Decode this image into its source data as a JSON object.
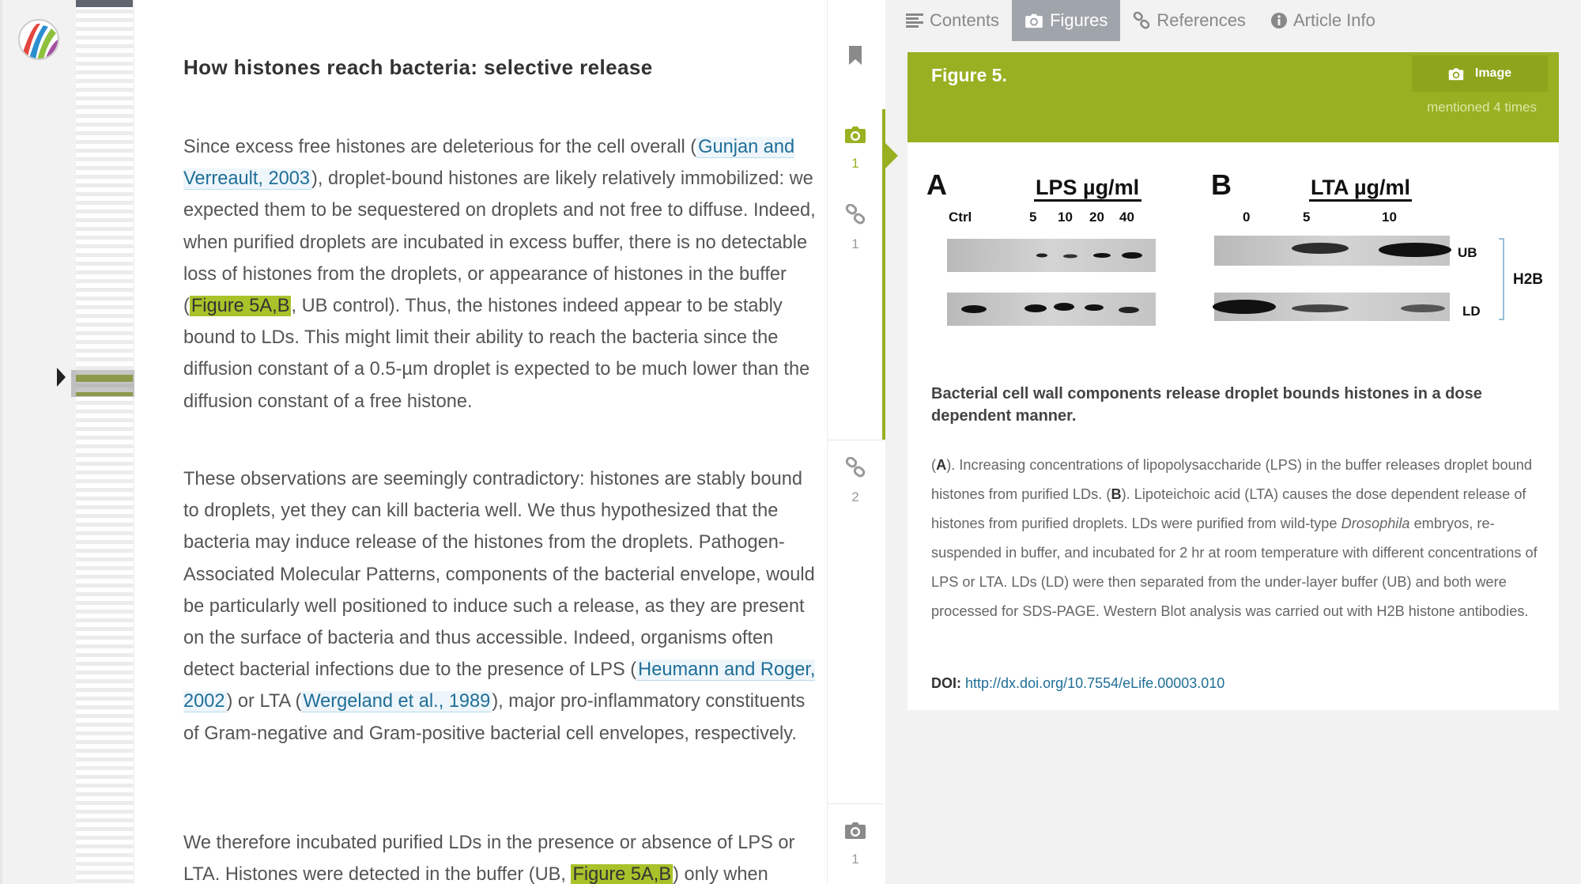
{
  "colors": {
    "accent": "#98b022",
    "link": "#1f6e97",
    "tab_active_bg": "#a0a5ab"
  },
  "article": {
    "heading": "How histones reach bacteria: selective release",
    "p1": {
      "t1": "Since excess free histones are deleterious for the cell overall (",
      "c1": "Gunjan and Verreault, 2003",
      "t2": "), droplet-bound histones are likely relatively immobilized: we expected them to be sequestered on droplets and not free to diffuse. Indeed, when purified droplets are incubated in excess buffer, there is no detectable loss of histones from the droplets, or appearance of histones in the buffer (",
      "f1": "Figure 5A,B",
      "t3": ", UB control). Thus, the histones indeed appear to be stably bound to LDs. This might limit their ability to reach the bacteria since the diffusion constant of a 0.5-µm droplet is expected to be much lower than the diffusion constant of a free histone."
    },
    "p2": {
      "t1": "These observations are seemingly contradictory: histones are stably bound to droplets, yet they can kill bacteria well. We thus hypothesized that the bacteria may induce release of the histones from the droplets. Pathogen-Associated Molecular Patterns, components of the bacterial envelope, would be particularly well positioned to induce such a release, as they are present on the surface of bacteria and thus accessible. Indeed, organisms often detect bacterial infections due to the presence of LPS (",
      "c1": "Heumann and Roger, 2002",
      "t2": ") or LTA (",
      "c2": "Wergeland et al., 1989",
      "t3": "), major pro-inflammatory constituents of Gram-negative and Gram-positive bacterial cell envelopes, respectively."
    },
    "p3": {
      "t1": "We therefore incubated purified LDs in the presence or absence of LPS or LTA. Histones were detected in the buffer (UB, ",
      "f1": "Figure 5A,B",
      "t2": ") only when"
    }
  },
  "gutter": {
    "items": [
      {
        "icon": "camera-icon",
        "count": "1"
      },
      {
        "icon": "link-icon",
        "count": "1"
      },
      {
        "icon": "link-icon",
        "count": "2"
      },
      {
        "icon": "camera-icon",
        "count": "1"
      }
    ]
  },
  "tabs": [
    {
      "label": "Contents",
      "icon": "list-icon"
    },
    {
      "label": "Figures",
      "icon": "camera-icon"
    },
    {
      "label": "References",
      "icon": "link-icon"
    },
    {
      "label": "Article Info",
      "icon": "info-icon"
    }
  ],
  "figure": {
    "title": "Figure 5.",
    "image_button": "Image",
    "mentioned": "mentioned 4 times",
    "panel_a": {
      "letter": "A",
      "header": "LPS µg/ml",
      "lanes": [
        "Ctrl",
        "5",
        "10",
        "20",
        "40"
      ]
    },
    "panel_b": {
      "letter": "B",
      "header": "LTA µg/ml",
      "lanes": [
        "0",
        "5",
        "10"
      ]
    },
    "labels": {
      "ub": "UB",
      "ld": "LD",
      "protein": "H2B"
    },
    "caption_title": "Bacterial cell wall components release droplet bounds histones in a dose dependent manner.",
    "caption": {
      "a_open": "(",
      "a_letter": "A",
      "a_text": "). Increasing concentrations of lipopolysaccharide (LPS) in the buffer releases droplet bound histones from purified LDs. (",
      "b_letter": "B",
      "b_text": "). Lipoteichoic acid (LTA) causes the dose dependent release of histones from purified droplets. LDs were purified from wild-type ",
      "species": "Drosophila",
      "rest": " embryos, re-suspended in buffer, and incubated for 2 hr at room temperature with different concentrations of LPS or LTA. LDs (LD) were then separated from the under-layer buffer (UB) and both were processed for SDS-PAGE. Western Blot analysis was carried out with H2B histone antibodies."
    },
    "doi_label": "DOI:",
    "doi_link": "http://dx.doi.org/10.7554/eLife.00003.010"
  }
}
